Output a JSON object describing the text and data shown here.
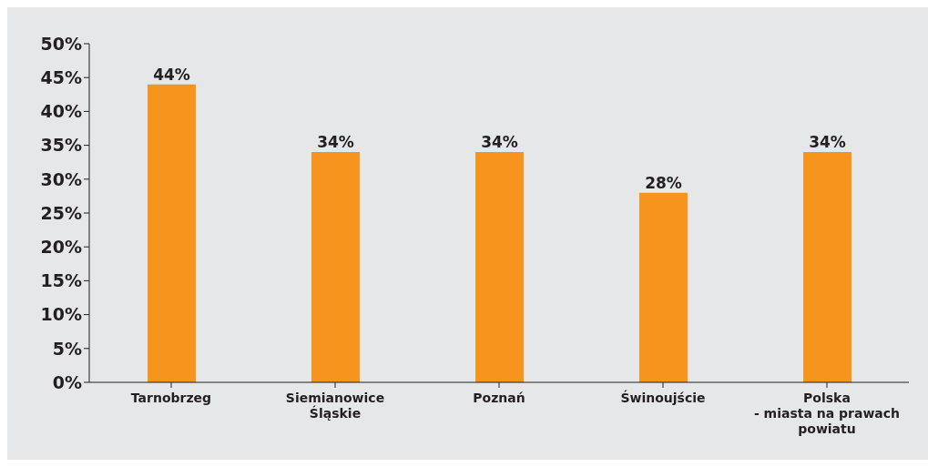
{
  "chart_data": {
    "type": "bar",
    "categories": [
      "Tarnobrzeg",
      "Siemianowice\nŚląskie",
      "Poznań",
      "Świnoujście",
      "Polska\n- miasta na prawach\npowiatu"
    ],
    "values": [
      44,
      34,
      34,
      28,
      34
    ],
    "value_labels": [
      "44%",
      "34%",
      "34%",
      "28%",
      "34%"
    ],
    "color": "#f7941d",
    "ylim": [
      0,
      50
    ],
    "yticks": [
      {
        "value": 0,
        "label": "0%"
      },
      {
        "value": 5,
        "label": "5%"
      },
      {
        "value": 10,
        "label": "10%"
      },
      {
        "value": 15,
        "label": "15%"
      },
      {
        "value": 20,
        "label": "20%"
      },
      {
        "value": 25,
        "label": "25%"
      },
      {
        "value": 30,
        "label": "30%"
      },
      {
        "value": 35,
        "label": "35%"
      },
      {
        "value": 40,
        "label": "40%"
      },
      {
        "value": 45,
        "label": "45%"
      },
      {
        "value": 50,
        "label": "50%"
      }
    ],
    "grid": false,
    "legend": false
  }
}
